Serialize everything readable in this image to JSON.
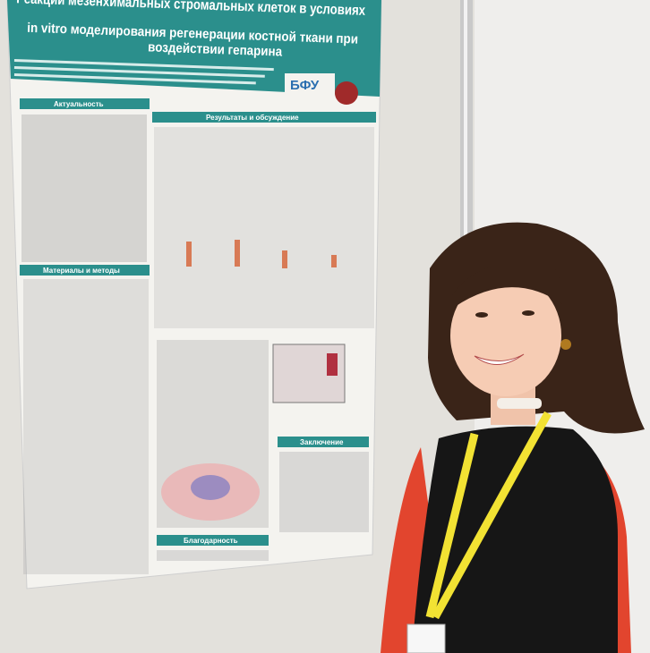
{
  "poster": {
    "title": [
      "Реакции мезенхимальных стромальных клеток в условиях",
      "in vitro моделирования регенерации костной ткани при",
      "воздействии гепарина"
    ],
    "logo": "БФУ",
    "sections": [
      "Актуальность",
      "Результаты и обсуждение",
      "Материалы и методы",
      "Заключение",
      "Благодарность"
    ]
  }
}
